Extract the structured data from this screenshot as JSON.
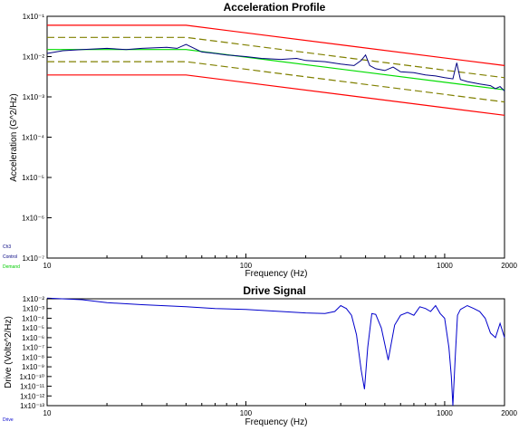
{
  "chart_data": [
    {
      "type": "line",
      "title": "Acceleration Profile",
      "xlabel": "Frequency (Hz)",
      "ylabel": "Acceleration (G^2/Hz)",
      "xscale": "log",
      "yscale": "log",
      "xlim": [
        10,
        2000
      ],
      "ylim": [
        1e-07,
        0.1
      ],
      "x_ticks": [
        {
          "value": 10,
          "label": "10"
        },
        {
          "value": 100,
          "label": "100"
        },
        {
          "value": 1000,
          "label": "1000"
        },
        {
          "value": 2000,
          "label": "2000"
        }
      ],
      "y_ticks": [
        {
          "value": 0.1,
          "label": "1x10⁻¹"
        },
        {
          "value": 0.01,
          "label": "1x10⁻²"
        },
        {
          "value": 0.001,
          "label": "1x10⁻³"
        },
        {
          "value": 0.0001,
          "label": "1x10⁻⁴"
        },
        {
          "value": 1e-05,
          "label": "1x10⁻⁵"
        },
        {
          "value": 1e-06,
          "label": "1x10⁻⁶"
        },
        {
          "value": 1e-07,
          "label": "1x10⁻⁷"
        }
      ],
      "legend": {
        "placement": "bottom-left",
        "entries": [
          "Ch3",
          "Control",
          "Demand"
        ]
      },
      "grid": false,
      "series": [
        {
          "key": "abort_upper",
          "color": "#ff0000",
          "dash": false,
          "points": [
            [
              10,
              0.06
            ],
            [
              50,
              0.06
            ],
            [
              2000,
              0.006
            ]
          ]
        },
        {
          "key": "alarm_upper",
          "color": "#808000",
          "dash": true,
          "points": [
            [
              10,
              0.03
            ],
            [
              50,
              0.03
            ],
            [
              2000,
              0.003
            ]
          ]
        },
        {
          "key": "demand",
          "name": "Demand",
          "color": "#00dd00",
          "dash": false,
          "points": [
            [
              10,
              0.015
            ],
            [
              50,
              0.015
            ],
            [
              2000,
              0.0015
            ]
          ]
        },
        {
          "key": "alarm_lower",
          "color": "#808000",
          "dash": true,
          "points": [
            [
              10,
              0.0075
            ],
            [
              50,
              0.0075
            ],
            [
              2000,
              0.00075
            ]
          ]
        },
        {
          "key": "abort_lower",
          "color": "#ff0000",
          "dash": false,
          "points": [
            [
              10,
              0.0035
            ],
            [
              50,
              0.0035
            ],
            [
              2000,
              0.00035
            ]
          ]
        },
        {
          "key": "control",
          "name": "Control",
          "color": "#000080",
          "dash": false,
          "points": [
            [
              10,
              0.012
            ],
            [
              12,
              0.014
            ],
            [
              15,
              0.015
            ],
            [
              20,
              0.016
            ],
            [
              25,
              0.015
            ],
            [
              30,
              0.016
            ],
            [
              40,
              0.017
            ],
            [
              45,
              0.016
            ],
            [
              50,
              0.02
            ],
            [
              55,
              0.016
            ],
            [
              60,
              0.013
            ],
            [
              70,
              0.012
            ],
            [
              80,
              0.011
            ],
            [
              100,
              0.01
            ],
            [
              120,
              0.009
            ],
            [
              150,
              0.0085
            ],
            [
              180,
              0.009
            ],
            [
              200,
              0.008
            ],
            [
              250,
              0.0075
            ],
            [
              300,
              0.0065
            ],
            [
              350,
              0.006
            ],
            [
              380,
              0.008
            ],
            [
              400,
              0.011
            ],
            [
              420,
              0.006
            ],
            [
              450,
              0.005
            ],
            [
              500,
              0.0045
            ],
            [
              550,
              0.0055
            ],
            [
              600,
              0.0042
            ],
            [
              700,
              0.004
            ],
            [
              800,
              0.0035
            ],
            [
              900,
              0.0033
            ],
            [
              1000,
              0.003
            ],
            [
              1100,
              0.0028
            ],
            [
              1150,
              0.007
            ],
            [
              1200,
              0.0027
            ],
            [
              1300,
              0.0024
            ],
            [
              1500,
              0.0021
            ],
            [
              1700,
              0.0019
            ],
            [
              1800,
              0.0016
            ],
            [
              1900,
              0.0018
            ],
            [
              2000,
              0.0014
            ]
          ]
        }
      ]
    },
    {
      "type": "line",
      "title": "Drive Signal",
      "xlabel": "Frequency (Hz)",
      "ylabel": "Drive (Volts^2/Hz)",
      "xscale": "log",
      "yscale": "log",
      "xlim": [
        10,
        2000
      ],
      "ylim": [
        1e-13,
        0.01
      ],
      "x_ticks": [
        {
          "value": 10,
          "label": "10"
        },
        {
          "value": 100,
          "label": "100"
        },
        {
          "value": 1000,
          "label": "1000"
        },
        {
          "value": 2000,
          "label": "2000"
        }
      ],
      "y_ticks": [
        {
          "value": 0.01,
          "label": "1x10⁻²"
        },
        {
          "value": 0.001,
          "label": "1x10⁻³"
        },
        {
          "value": 0.0001,
          "label": "1x10⁻⁴"
        },
        {
          "value": 1e-05,
          "label": "1x10⁻⁵"
        },
        {
          "value": 1e-06,
          "label": "1x10⁻⁶"
        },
        {
          "value": 1e-07,
          "label": "1x10⁻⁷"
        },
        {
          "value": 1e-08,
          "label": "1x10⁻⁸"
        },
        {
          "value": 1e-09,
          "label": "1x10⁻⁹"
        },
        {
          "value": 1e-10,
          "label": "1x10⁻¹⁰"
        },
        {
          "value": 1e-11,
          "label": "1x10⁻¹¹"
        },
        {
          "value": 1e-12,
          "label": "1x10⁻¹²"
        },
        {
          "value": 1e-13,
          "label": "1x10⁻¹³"
        }
      ],
      "legend": {
        "placement": "bottom-left",
        "entries": [
          "Drive"
        ]
      },
      "grid": false,
      "series": [
        {
          "key": "drive",
          "name": "Drive",
          "color": "#0000cc",
          "dash": false,
          "points": [
            [
              10,
              0.012
            ],
            [
              15,
              0.008
            ],
            [
              20,
              0.004
            ],
            [
              30,
              0.0025
            ],
            [
              50,
              0.0015
            ],
            [
              70,
              0.001
            ],
            [
              100,
              0.0008
            ],
            [
              150,
              0.0005
            ],
            [
              200,
              0.00035
            ],
            [
              250,
              0.0003
            ],
            [
              280,
              0.0005
            ],
            [
              300,
              0.002
            ],
            [
              320,
              0.001
            ],
            [
              340,
              0.0002
            ],
            [
              360,
              2e-06
            ],
            [
              380,
              5e-10
            ],
            [
              395,
              5e-12
            ],
            [
              410,
              1e-07
            ],
            [
              430,
              0.0003
            ],
            [
              450,
              0.00025
            ],
            [
              480,
              1e-05
            ],
            [
              520,
              5e-09
            ],
            [
              560,
              2e-05
            ],
            [
              600,
              0.0002
            ],
            [
              650,
              0.0004
            ],
            [
              700,
              0.0002
            ],
            [
              750,
              0.0015
            ],
            [
              800,
              0.001
            ],
            [
              850,
              0.0005
            ],
            [
              900,
              0.002
            ],
            [
              950,
              0.0003
            ],
            [
              1000,
              0.0001
            ],
            [
              1050,
              1e-07
            ],
            [
              1080,
              1e-10
            ],
            [
              1100,
              1e-13
            ],
            [
              1130,
              1e-08
            ],
            [
              1160,
              0.0002
            ],
            [
              1200,
              0.0008
            ],
            [
              1300,
              0.002
            ],
            [
              1400,
              0.001
            ],
            [
              1500,
              0.0005
            ],
            [
              1600,
              0.0001
            ],
            [
              1700,
              3e-06
            ],
            [
              1800,
              1e-06
            ],
            [
              1900,
              3e-05
            ],
            [
              2000,
              1e-06
            ]
          ]
        }
      ]
    }
  ]
}
